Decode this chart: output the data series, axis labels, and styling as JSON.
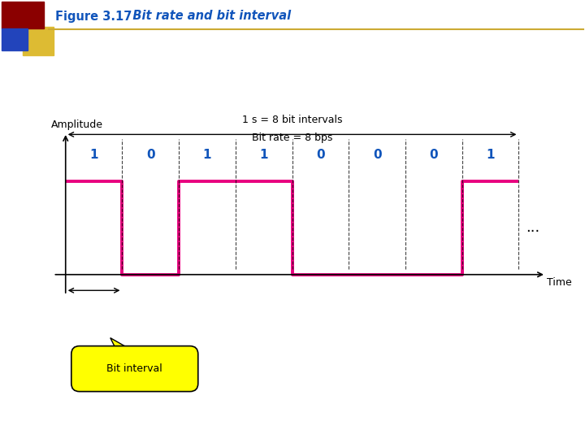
{
  "bits": [
    1,
    0,
    1,
    1,
    0,
    0,
    0,
    1
  ],
  "signal_color": "#e8007f",
  "signal_linewidth": 2.8,
  "bit_label_color": "#1155bb",
  "annotation_line1": "1 s = 8 bit intervals",
  "annotation_line2": "Bit rate = 8 bps",
  "amplitude_label": "Amplitude",
  "time_label": "Time",
  "bit_interval_label": "Bit interval",
  "dots_text": "...",
  "background_color": "#ffffff",
  "header_line_color": "#ccaa33",
  "bubble_color": "#ffff00",
  "title_bold": "Figure 3.17",
  "title_italic": "   Bit rate and bit interval",
  "title_color": "#1155bb",
  "sq1_color": "#8b0000",
  "sq2_color": "#2244bb",
  "sq3_color": "#ddbb33"
}
